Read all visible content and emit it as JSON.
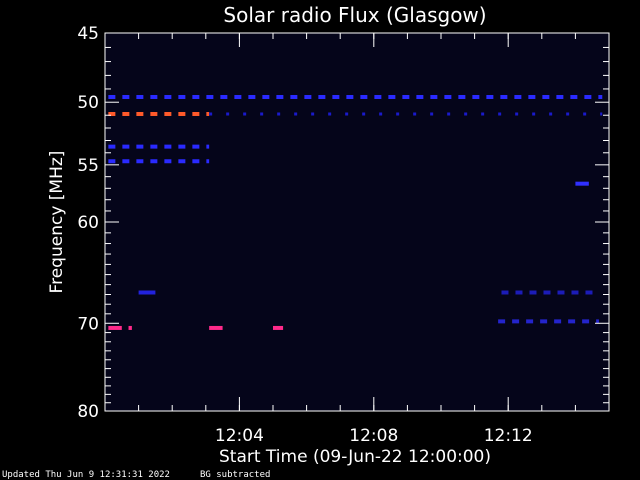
{
  "chart_data": {
    "type": "heatmap",
    "title": "Solar radio Flux (Glasgow)",
    "xlabel": "Start Time (09-Jun-22 12:00:00)",
    "ylabel": "Frequency [MHz]",
    "xlim_minutes": [
      0,
      15
    ],
    "ylim_mhz": [
      45,
      80
    ],
    "x_tick_labels": [
      {
        "minute": 4,
        "label": "12:04"
      },
      {
        "minute": 8,
        "label": "12:08"
      },
      {
        "minute": 12,
        "label": "12:12"
      }
    ],
    "y_tick_labels": [
      {
        "mhz": 45,
        "label": "45"
      },
      {
        "mhz": 50,
        "label": "50"
      },
      {
        "mhz": 55,
        "label": "55"
      },
      {
        "mhz": 60,
        "label": "60"
      },
      {
        "mhz": 70,
        "label": "70"
      },
      {
        "mhz": 80,
        "label": "80"
      }
    ],
    "bands": [
      {
        "mhz": 49.6,
        "start_min": 0.1,
        "end_min": 14.8,
        "color": "#2a2aff",
        "style": "dashed"
      },
      {
        "mhz": 50.9,
        "start_min": 0.1,
        "end_min": 3.1,
        "color": "#ff5a2a",
        "style": "dashed"
      },
      {
        "mhz": 50.9,
        "start_min": 3.1,
        "end_min": 14.8,
        "color": "#1a1acc",
        "style": "sparse"
      },
      {
        "mhz": 53.5,
        "start_min": 0.1,
        "end_min": 3.1,
        "color": "#2a2aff",
        "style": "dashed"
      },
      {
        "mhz": 54.7,
        "start_min": 0.1,
        "end_min": 3.1,
        "color": "#2a2aff",
        "style": "dashed"
      },
      {
        "mhz": 56.6,
        "start_min": 14.0,
        "end_min": 14.4,
        "color": "#3030ff",
        "style": "solid"
      },
      {
        "mhz": 66.8,
        "start_min": 1.0,
        "end_min": 1.5,
        "color": "#2222dd",
        "style": "solid"
      },
      {
        "mhz": 66.8,
        "start_min": 11.8,
        "end_min": 14.6,
        "color": "#1c1cb8",
        "style": "dashed"
      },
      {
        "mhz": 69.8,
        "start_min": 11.7,
        "end_min": 14.7,
        "color": "#2424cc",
        "style": "dashed"
      },
      {
        "mhz": 70.5,
        "start_min": 0.1,
        "end_min": 0.5,
        "color": "#ff2a8a",
        "style": "solid"
      },
      {
        "mhz": 70.5,
        "start_min": 0.7,
        "end_min": 0.8,
        "color": "#ff2a8a",
        "style": "solid"
      },
      {
        "mhz": 70.5,
        "start_min": 3.1,
        "end_min": 3.5,
        "color": "#ff2a8a",
        "style": "solid"
      },
      {
        "mhz": 70.5,
        "start_min": 5.0,
        "end_min": 5.3,
        "color": "#ff2a8a",
        "style": "solid"
      }
    ],
    "colors": {
      "background": "#000000",
      "plot_background": "#05051a",
      "axis": "#ffffff"
    }
  },
  "footer": {
    "updated": "Updated Thu Jun  9 12:31:31 2022",
    "bg_note": "BG subtracted"
  }
}
